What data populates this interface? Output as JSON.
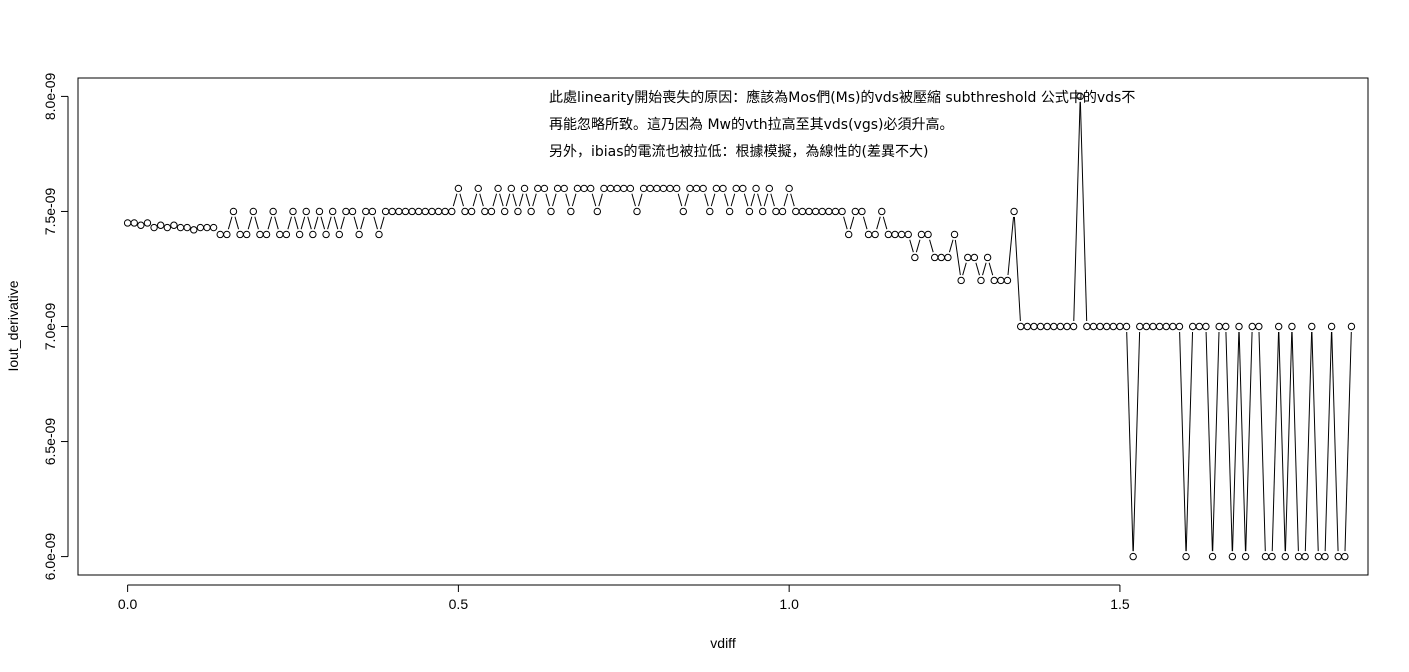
{
  "chart_data": {
    "type": "line",
    "plot_style": "both (points and lines)",
    "xlabel": "vdiff",
    "ylabel": "Iout_derivative",
    "xlim": [
      -0.075,
      1.875
    ],
    "ylim": [
      5.92e-09,
      8.08e-09
    ],
    "x_ticks": [
      {
        "value": 0.0,
        "label": "0.0"
      },
      {
        "value": 0.5,
        "label": "0.5"
      },
      {
        "value": 1.0,
        "label": "1.0"
      },
      {
        "value": 1.5,
        "label": "1.5"
      }
    ],
    "y_ticks": [
      {
        "value": 6e-09,
        "label": "6.0e-09"
      },
      {
        "value": 6.5e-09,
        "label": "6.5e-09"
      },
      {
        "value": 7e-09,
        "label": "7.0e-09"
      },
      {
        "value": 7.5e-09,
        "label": "7.5e-09"
      },
      {
        "value": 8e-09,
        "label": "8.0e-09"
      }
    ],
    "grid": false,
    "annotations": [
      "此處linearity開始喪失的原因：應該為Mos們(Ms)的vds被壓縮 subthreshold 公式中的vds不",
      "再能忽略所致。這乃因為 Mw的vth拉高至其vds(vgs)必須升高。",
      "另外，ibias的電流也被拉低：根據模擬，為線性的(差異不大)"
    ],
    "series": [
      {
        "x_start": 0.0,
        "x_step": 0.01,
        "values": [
          7.45e-09,
          7.45e-09,
          7.44e-09,
          7.45e-09,
          7.43e-09,
          7.44e-09,
          7.43e-09,
          7.44e-09,
          7.43e-09,
          7.43e-09,
          7.42e-09,
          7.43e-09,
          7.43e-09,
          7.43e-09,
          7.4e-09,
          7.4e-09,
          7.5e-09,
          7.4e-09,
          7.4e-09,
          7.5e-09,
          7.4e-09,
          7.4e-09,
          7.5e-09,
          7.4e-09,
          7.4e-09,
          7.5e-09,
          7.4e-09,
          7.5e-09,
          7.4e-09,
          7.5e-09,
          7.4e-09,
          7.5e-09,
          7.4e-09,
          7.5e-09,
          7.5e-09,
          7.4e-09,
          7.5e-09,
          7.5e-09,
          7.4e-09,
          7.5e-09,
          7.5e-09,
          7.5e-09,
          7.5e-09,
          7.5e-09,
          7.5e-09,
          7.5e-09,
          7.5e-09,
          7.5e-09,
          7.5e-09,
          7.5e-09,
          7.6e-09,
          7.5e-09,
          7.5e-09,
          7.6e-09,
          7.5e-09,
          7.5e-09,
          7.6e-09,
          7.5e-09,
          7.6e-09,
          7.5e-09,
          7.6e-09,
          7.5e-09,
          7.6e-09,
          7.6e-09,
          7.5e-09,
          7.6e-09,
          7.6e-09,
          7.5e-09,
          7.6e-09,
          7.6e-09,
          7.6e-09,
          7.5e-09,
          7.6e-09,
          7.6e-09,
          7.6e-09,
          7.6e-09,
          7.6e-09,
          7.5e-09,
          7.6e-09,
          7.6e-09,
          7.6e-09,
          7.6e-09,
          7.6e-09,
          7.6e-09,
          7.5e-09,
          7.6e-09,
          7.6e-09,
          7.6e-09,
          7.5e-09,
          7.6e-09,
          7.6e-09,
          7.5e-09,
          7.6e-09,
          7.6e-09,
          7.5e-09,
          7.6e-09,
          7.5e-09,
          7.6e-09,
          7.5e-09,
          7.5e-09,
          7.6e-09,
          7.5e-09,
          7.5e-09,
          7.5e-09,
          7.5e-09,
          7.5e-09,
          7.5e-09,
          7.5e-09,
          7.5e-09,
          7.4e-09,
          7.5e-09,
          7.5e-09,
          7.4e-09,
          7.4e-09,
          7.5e-09,
          7.4e-09,
          7.4e-09,
          7.4e-09,
          7.4e-09,
          7.3e-09,
          7.4e-09,
          7.4e-09,
          7.3e-09,
          7.3e-09,
          7.3e-09,
          7.4e-09,
          7.2e-09,
          7.3e-09,
          7.3e-09,
          7.2e-09,
          7.3e-09,
          7.2e-09,
          7.2e-09,
          7.2e-09,
          7.5e-09,
          7e-09,
          7e-09,
          7e-09,
          7e-09,
          7e-09,
          7e-09,
          7e-09,
          7e-09,
          7e-09,
          8e-09,
          7e-09,
          7e-09,
          7e-09,
          7e-09,
          7e-09,
          7e-09,
          7e-09,
          6e-09,
          7e-09,
          7e-09,
          7e-09,
          7e-09,
          7e-09,
          7e-09,
          7e-09,
          6e-09,
          7e-09,
          7e-09,
          7e-09,
          6e-09,
          7e-09,
          7e-09,
          6e-09,
          7e-09,
          6e-09,
          7e-09,
          7e-09,
          6e-09,
          6e-09,
          7e-09,
          6e-09,
          7e-09,
          6e-09,
          6e-09,
          7e-09,
          6e-09,
          6e-09,
          7e-09,
          6e-09,
          6e-09,
          7e-09
        ]
      }
    ]
  }
}
